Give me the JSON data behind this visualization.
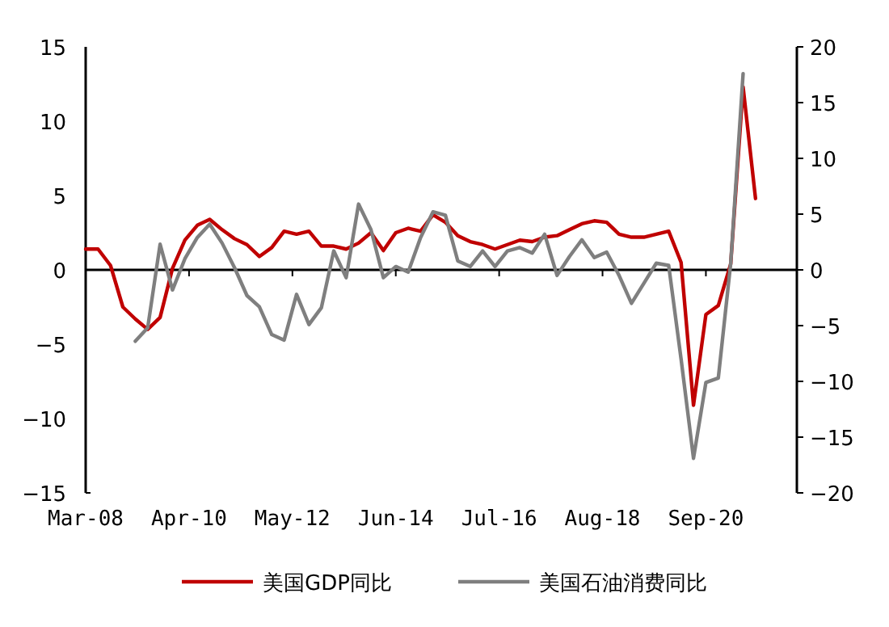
{
  "chart_data": {
    "type": "line",
    "x": [
      "2008-03",
      "2008-06",
      "2008-09",
      "2008-12",
      "2009-03",
      "2009-06",
      "2009-09",
      "2009-12",
      "2010-03",
      "2010-06",
      "2010-09",
      "2010-12",
      "2011-03",
      "2011-06",
      "2011-09",
      "2011-12",
      "2012-03",
      "2012-06",
      "2012-09",
      "2012-12",
      "2013-03",
      "2013-06",
      "2013-09",
      "2013-12",
      "2014-03",
      "2014-06",
      "2014-09",
      "2014-12",
      "2015-03",
      "2015-06",
      "2015-09",
      "2015-12",
      "2016-03",
      "2016-06",
      "2016-09",
      "2016-12",
      "2017-03",
      "2017-06",
      "2017-09",
      "2017-12",
      "2018-03",
      "2018-06",
      "2018-09",
      "2018-12",
      "2019-03",
      "2019-06",
      "2019-09",
      "2019-12",
      "2020-03",
      "2020-06",
      "2020-09",
      "2020-12",
      "2021-03",
      "2021-06",
      "2021-09"
    ],
    "series": [
      {
        "name": "美国GDP同比",
        "color": "#c00000",
        "values": [
          1.4,
          1.4,
          0.3,
          -2.5,
          -3.3,
          -4.0,
          -3.2,
          0.1,
          2.0,
          3.0,
          3.4,
          2.7,
          2.1,
          1.7,
          0.9,
          1.5,
          2.6,
          2.4,
          2.6,
          1.6,
          1.6,
          1.4,
          1.8,
          2.5,
          1.3,
          2.5,
          2.8,
          2.6,
          3.7,
          3.2,
          2.3,
          1.9,
          1.7,
          1.4,
          1.7,
          2.0,
          1.9,
          2.2,
          2.3,
          2.7,
          3.1,
          3.3,
          3.2,
          2.4,
          2.2,
          2.2,
          2.4,
          2.6,
          0.5,
          -9.1,
          -3.0,
          -2.4,
          0.4,
          12.3,
          4.8
        ]
      },
      {
        "name": "美国石油消费同比",
        "color": "#7f7f7f",
        "axis": "y2",
        "values": [
          null,
          null,
          null,
          null,
          -6.4,
          -5.2,
          2.3,
          -1.8,
          1.0,
          2.9,
          4.1,
          2.4,
          0.2,
          -2.3,
          -3.3,
          -5.8,
          -6.3,
          -2.2,
          -4.9,
          -3.4,
          1.7,
          -0.7,
          5.9,
          3.6,
          -0.7,
          0.3,
          -0.2,
          2.9,
          5.2,
          4.9,
          0.8,
          0.3,
          1.7,
          0.3,
          1.7,
          2.0,
          1.5,
          3.2,
          -0.5,
          1.2,
          2.7,
          1.1,
          1.6,
          -0.5,
          -3.0,
          -1.2,
          0.6,
          0.4,
          -8.0,
          -16.9,
          -10.1,
          -9.7,
          0.6,
          17.6,
          null
        ]
      }
    ],
    "xlim": [
      "2008-03",
      "2022-07"
    ],
    "xticks": [
      {
        "value": "2008-03",
        "label": "Mar-08"
      },
      {
        "value": "2010-04",
        "label": "Apr-10"
      },
      {
        "value": "2012-05",
        "label": "May-12"
      },
      {
        "value": "2014-06",
        "label": "Jun-14"
      },
      {
        "value": "2016-07",
        "label": "Jul-16"
      },
      {
        "value": "2018-08",
        "label": "Aug-18"
      },
      {
        "value": "2020-09",
        "label": "Sep-20"
      }
    ],
    "ylim": [
      -15,
      15
    ],
    "yticks": [
      -15,
      -10,
      -5,
      0,
      5,
      10,
      15
    ],
    "y2lim": [
      -20,
      20
    ],
    "y2ticks": [
      -20,
      -15,
      -10,
      -5,
      0,
      5,
      10,
      15,
      20
    ],
    "legend": "bottom",
    "marker": "none",
    "line_style": "solid"
  }
}
